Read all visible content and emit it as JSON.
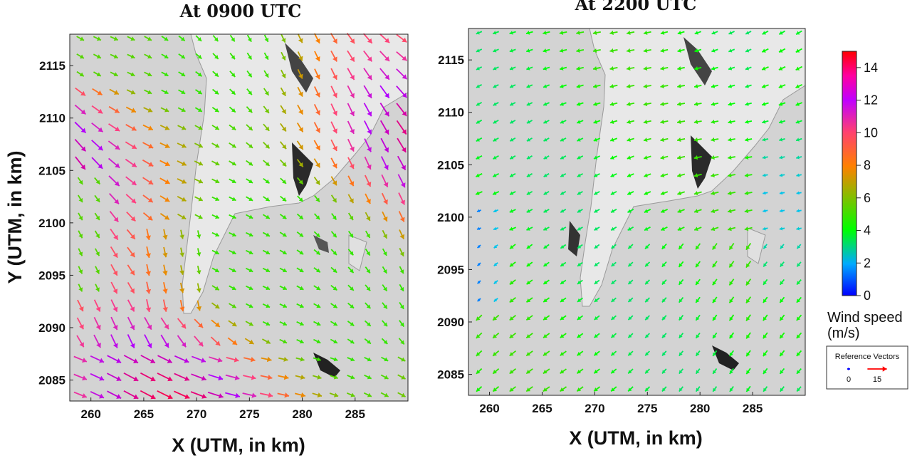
{
  "chart_data": [
    {
      "type": "vector-field",
      "title": "At 0900 UTC",
      "xlabel": "X (UTM, in km)",
      "ylabel": "Y (UTM, in km)",
      "xlim": [
        258,
        290
      ],
      "ylim": [
        2083,
        2118
      ],
      "xticks": [
        "260",
        "265",
        "270",
        "275",
        "280",
        "285"
      ],
      "yticks": [
        "2085",
        "2090",
        "2095",
        "2100",
        "2105",
        "2110",
        "2115"
      ],
      "background": "shaded-relief terrain",
      "wind_regime": "predominantly north-westerly winds, 6-13 m/s over land and sea",
      "grid": {
        "x_start": 259,
        "x_step": 1.6,
        "y_start": 2083.6,
        "y_step": 1.7
      }
    },
    {
      "type": "vector-field",
      "title": "At 2200 UTC",
      "xlabel": "X (UTM, in km)",
      "ylabel": "",
      "xlim": [
        258,
        290
      ],
      "ylim": [
        2083,
        2118
      ],
      "xticks": [
        "260",
        "265",
        "270",
        "275",
        "280",
        "285"
      ],
      "yticks": [
        "2085",
        "2090",
        "2095",
        "2100",
        "2105",
        "2110",
        "2115"
      ],
      "background": "shaded-relief terrain",
      "wind_regime": "weak easterly/north-easterly winds, 1-5 m/s",
      "grid": {
        "x_start": 259,
        "x_step": 1.6,
        "y_start": 2083.6,
        "y_step": 1.7
      }
    }
  ],
  "colorbar": {
    "ticks": [
      "0",
      "2",
      "4",
      "6",
      "8",
      "10",
      "12",
      "14"
    ],
    "min": 0,
    "max": 15,
    "title_line1": "Wind speed",
    "title_line2": "(m/s)",
    "colors": [
      "#0000ff",
      "#00bfff",
      "#00ff00",
      "#7fbf00",
      "#ff8000",
      "#ff4080",
      "#b000ff",
      "#ff0040",
      "#ff0000"
    ]
  },
  "reference": {
    "title": "Reference Vectors",
    "labels": [
      "0",
      "15"
    ],
    "values": [
      0,
      15
    ]
  }
}
